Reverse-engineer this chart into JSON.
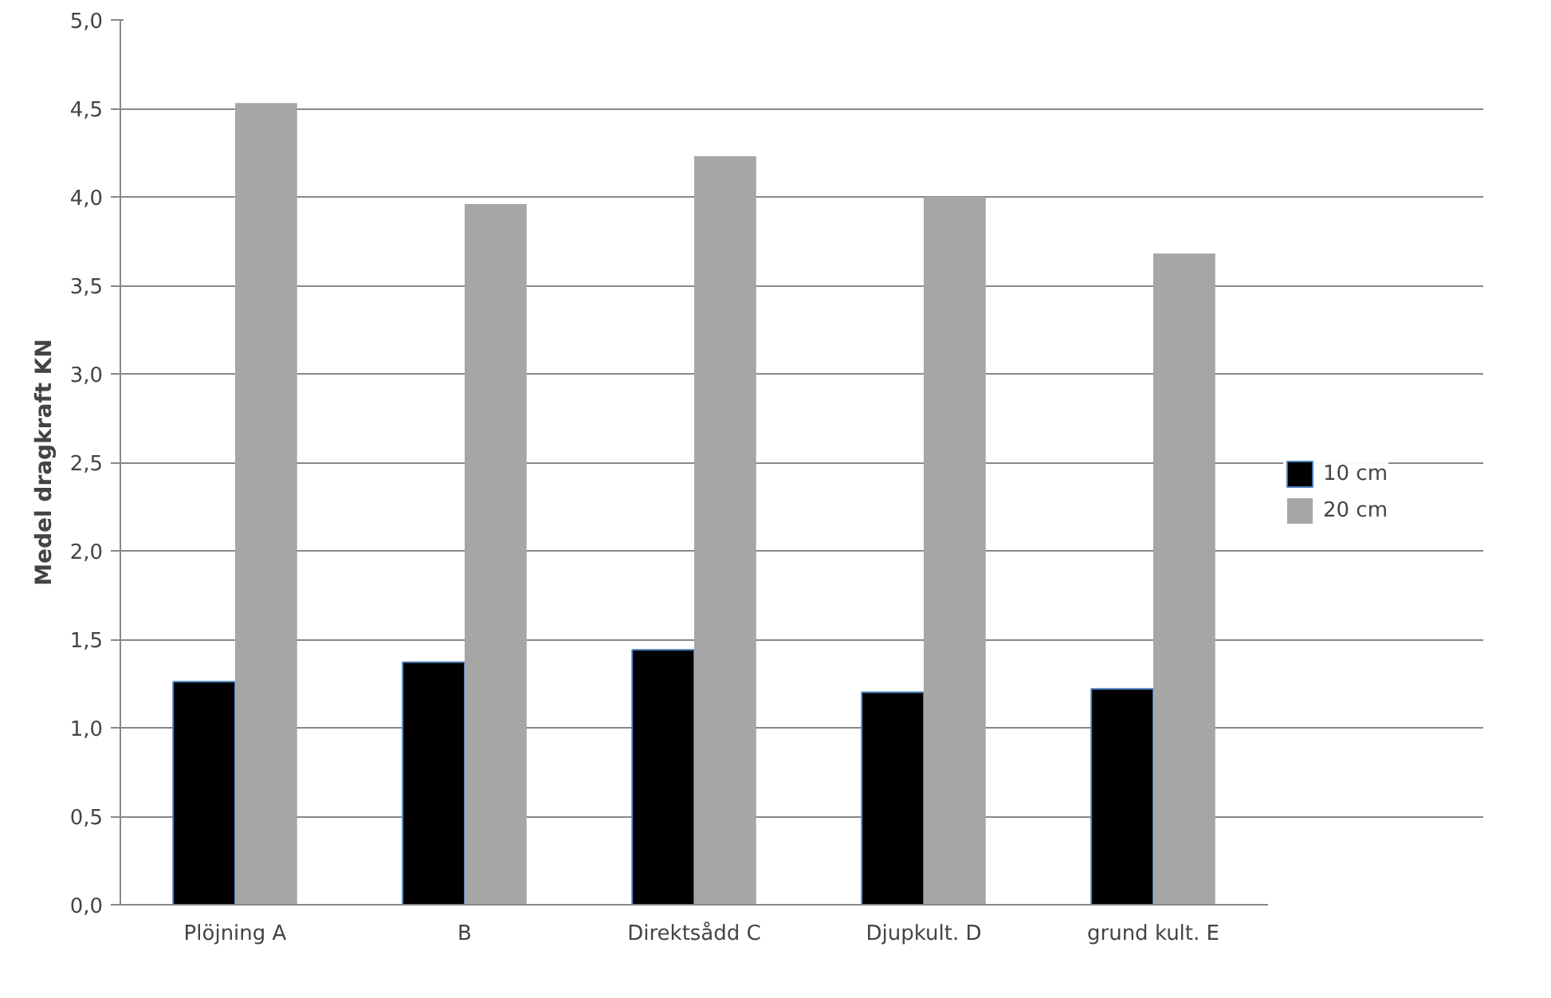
{
  "chart_data": {
    "type": "bar",
    "ylabel": "Medel dragkraft KN",
    "categories": [
      "Plöjning A",
      "B",
      "Direktsådd C",
      "Djupkult. D",
      "grund kult. E"
    ],
    "series": [
      {
        "name": "10 cm",
        "color": "#000000",
        "values": [
          1.26,
          1.37,
          1.44,
          1.2,
          1.22
        ]
      },
      {
        "name": "20 cm",
        "color": "#a6a6a6",
        "values": [
          4.53,
          3.96,
          4.23,
          4.0,
          3.68
        ]
      }
    ],
    "ylim": [
      0,
      5
    ],
    "yticks": [
      {
        "value": 0,
        "label": "0,0"
      },
      {
        "value": 0.5,
        "label": "0,5"
      },
      {
        "value": 1,
        "label": "1,0"
      },
      {
        "value": 1.5,
        "label": "1,5"
      },
      {
        "value": 2,
        "label": "2,0"
      },
      {
        "value": 2.5,
        "label": "2,5"
      },
      {
        "value": 3,
        "label": "3,0"
      },
      {
        "value": 3.5,
        "label": "3,5"
      },
      {
        "value": 4,
        "label": "4,0"
      },
      {
        "value": 4.5,
        "label": "4,5"
      },
      {
        "value": 5,
        "label": "5,0"
      }
    ],
    "grid": "y",
    "legend": "right"
  }
}
